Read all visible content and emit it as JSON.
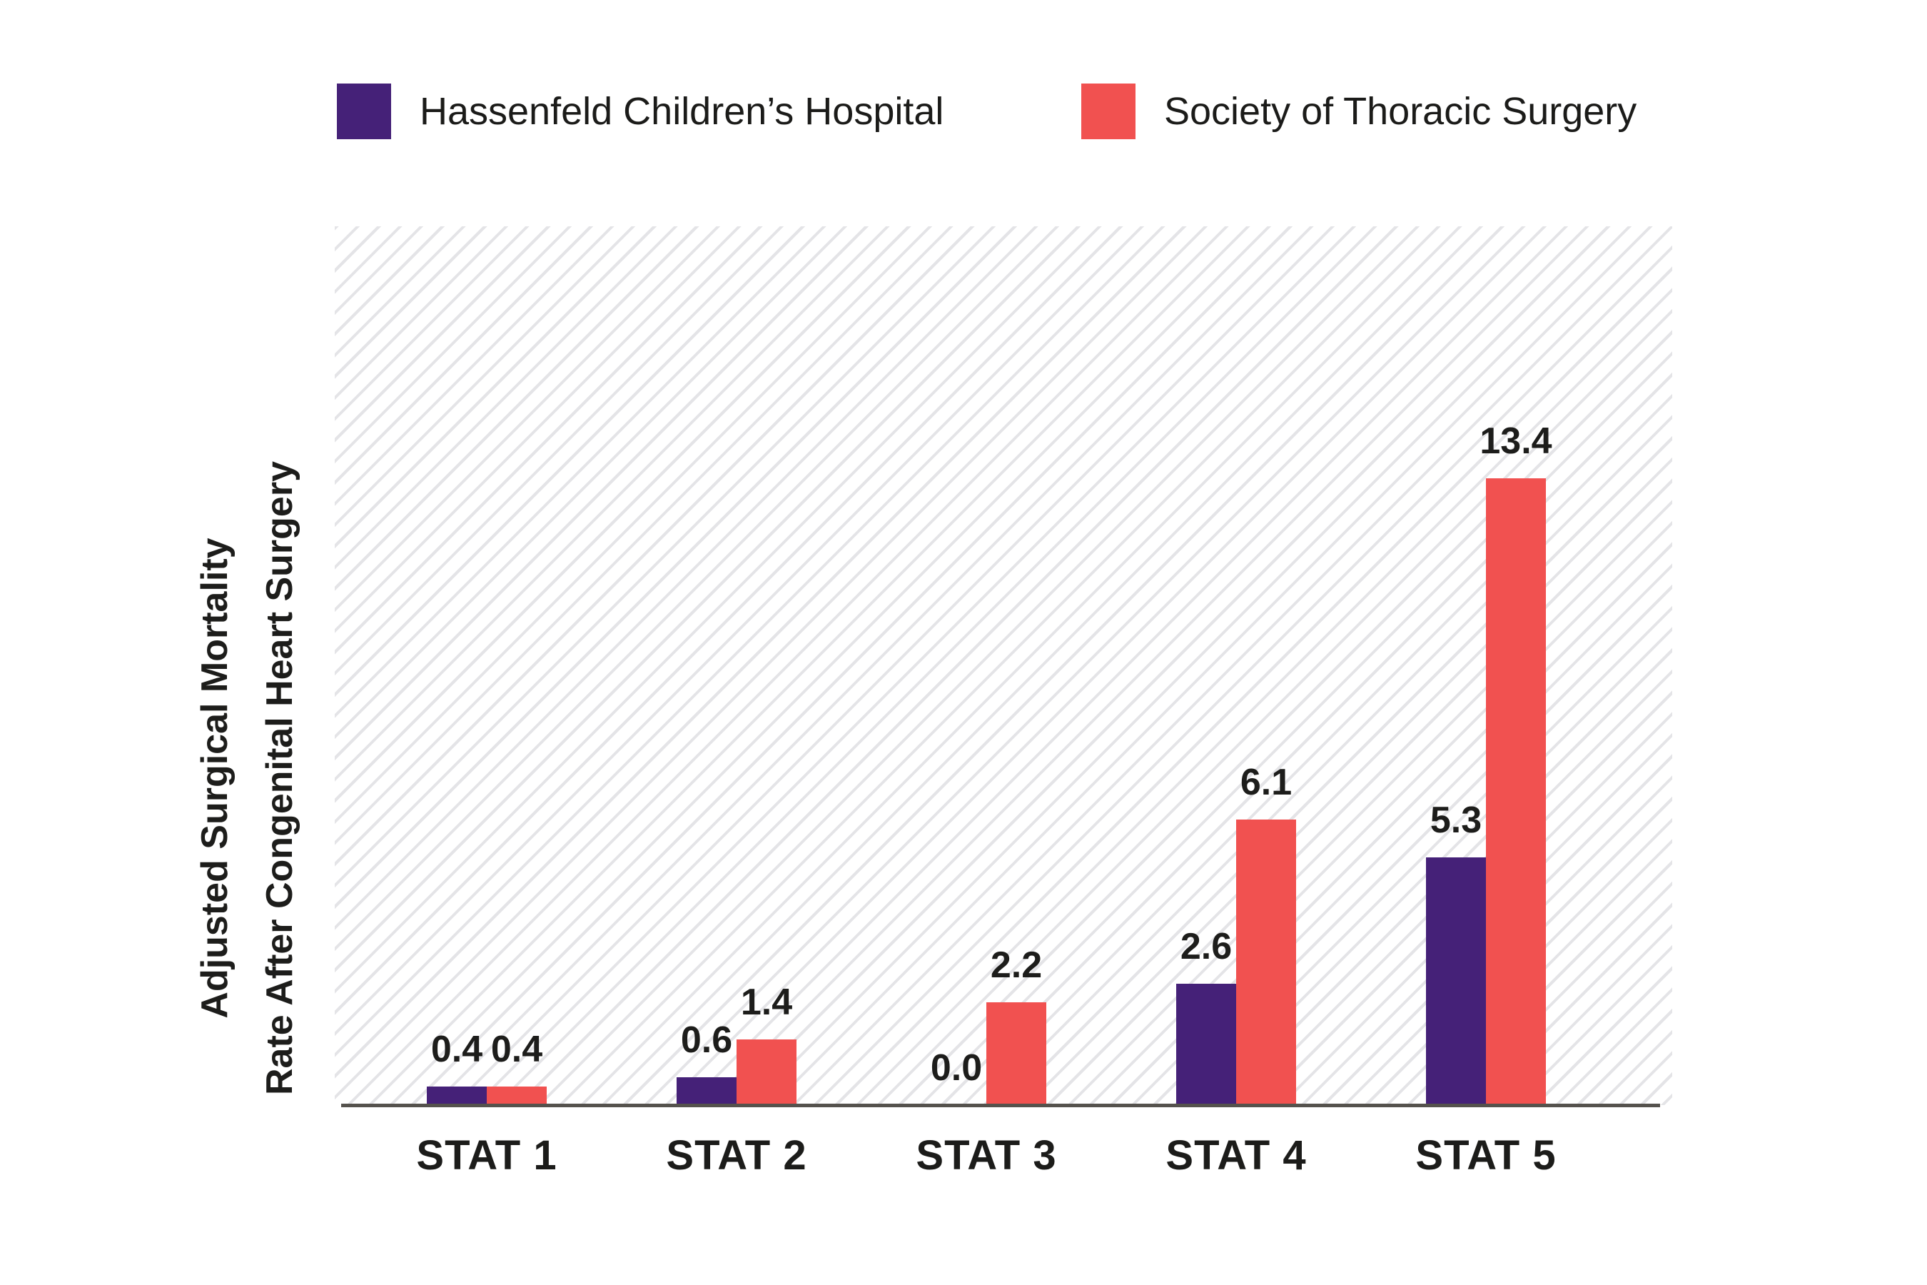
{
  "legend": {
    "items": [
      {
        "label": "Hassenfeld Children’s Hospital",
        "color": "#452178"
      },
      {
        "label": "Society of Thoracic Surgery",
        "color": "#f15150"
      }
    ]
  },
  "y_axis": {
    "line1": "Adjusted Surgical Mortality",
    "line2": "Rate After Congenital Heart Surgery"
  },
  "chart_data": {
    "type": "bar",
    "title": "",
    "xlabel": "",
    "ylabel": "Adjusted Surgical Mortality Rate After Congenital Heart Surgery",
    "categories": [
      "STAT 1",
      "STAT 2",
      "STAT 3",
      "STAT 4",
      "STAT 5"
    ],
    "series": [
      {
        "name": "Hassenfeld Children’s Hospital",
        "color": "#452178",
        "values": [
          0.4,
          0.6,
          0.0,
          2.6,
          5.3
        ]
      },
      {
        "name": "Society of Thoracic Surgery",
        "color": "#f15150",
        "values": [
          0.4,
          1.4,
          2.2,
          6.1,
          13.4
        ]
      }
    ],
    "value_labels": [
      [
        "0.4",
        "0.6",
        "0.0",
        "2.6",
        "5.3"
      ],
      [
        "0.4",
        "1.4",
        "2.2",
        "6.1",
        "13.4"
      ]
    ],
    "ylim": [
      0,
      19
    ],
    "grid": false,
    "legend_position": "top",
    "plot_background": "diagonal-hatch",
    "colors": {
      "hatch": "#e4e4e7",
      "axis": "#55524d",
      "text": "#1d1d1b"
    }
  }
}
